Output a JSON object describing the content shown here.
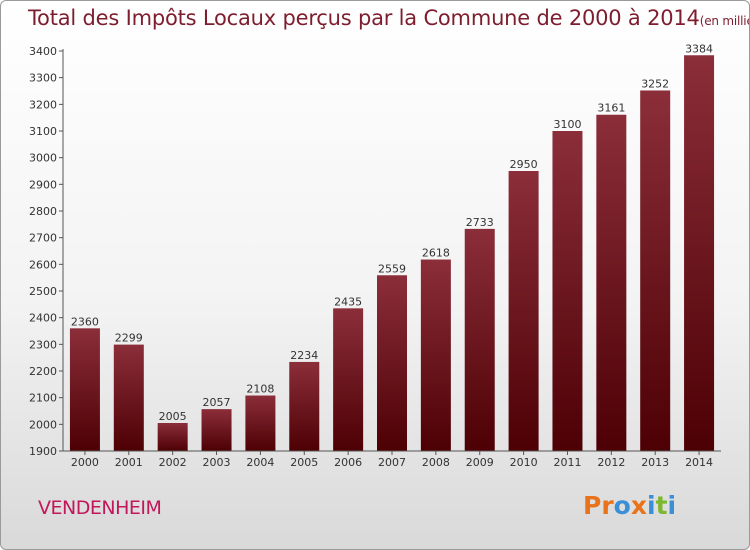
{
  "header": {
    "title": "Total des Impôts Locaux perçus par la Commune de 2000 à 2014",
    "unit": "(en milliers d'€)"
  },
  "footer": {
    "commune": "VENDENHEIM",
    "brand_letters": [
      "P",
      "r",
      "o",
      "x",
      "i",
      "t",
      "i"
    ],
    "brand_colors": [
      "#e8731a",
      "#e8731a",
      "#3a8fd6",
      "#e8731a",
      "#3a8fd6",
      "#7cb82f",
      "#3a8fd6"
    ]
  },
  "colors": {
    "bar_top": "#8b2e3a",
    "bar_bottom": "#4d0004",
    "title": "#7d1d2e",
    "commune": "#c2185b"
  },
  "chart_data": {
    "type": "bar",
    "title": "Total des Impôts Locaux perçus par la Commune de 2000 à 2014",
    "ylabel": "en milliers d'€",
    "xlabel": "",
    "categories": [
      "2000",
      "2001",
      "2002",
      "2003",
      "2004",
      "2005",
      "2006",
      "2007",
      "2008",
      "2009",
      "2010",
      "2011",
      "2012",
      "2013",
      "2014"
    ],
    "values": [
      2360,
      2299,
      2005,
      2057,
      2108,
      2234,
      2435,
      2559,
      2618,
      2733,
      2950,
      3100,
      3161,
      3252,
      3384
    ],
    "ylim": [
      1900,
      3400
    ],
    "yticks": [
      1900,
      2000,
      2100,
      2200,
      2300,
      2400,
      2500,
      2600,
      2700,
      2800,
      2900,
      3000,
      3100,
      3200,
      3300,
      3400
    ],
    "grid": false
  }
}
